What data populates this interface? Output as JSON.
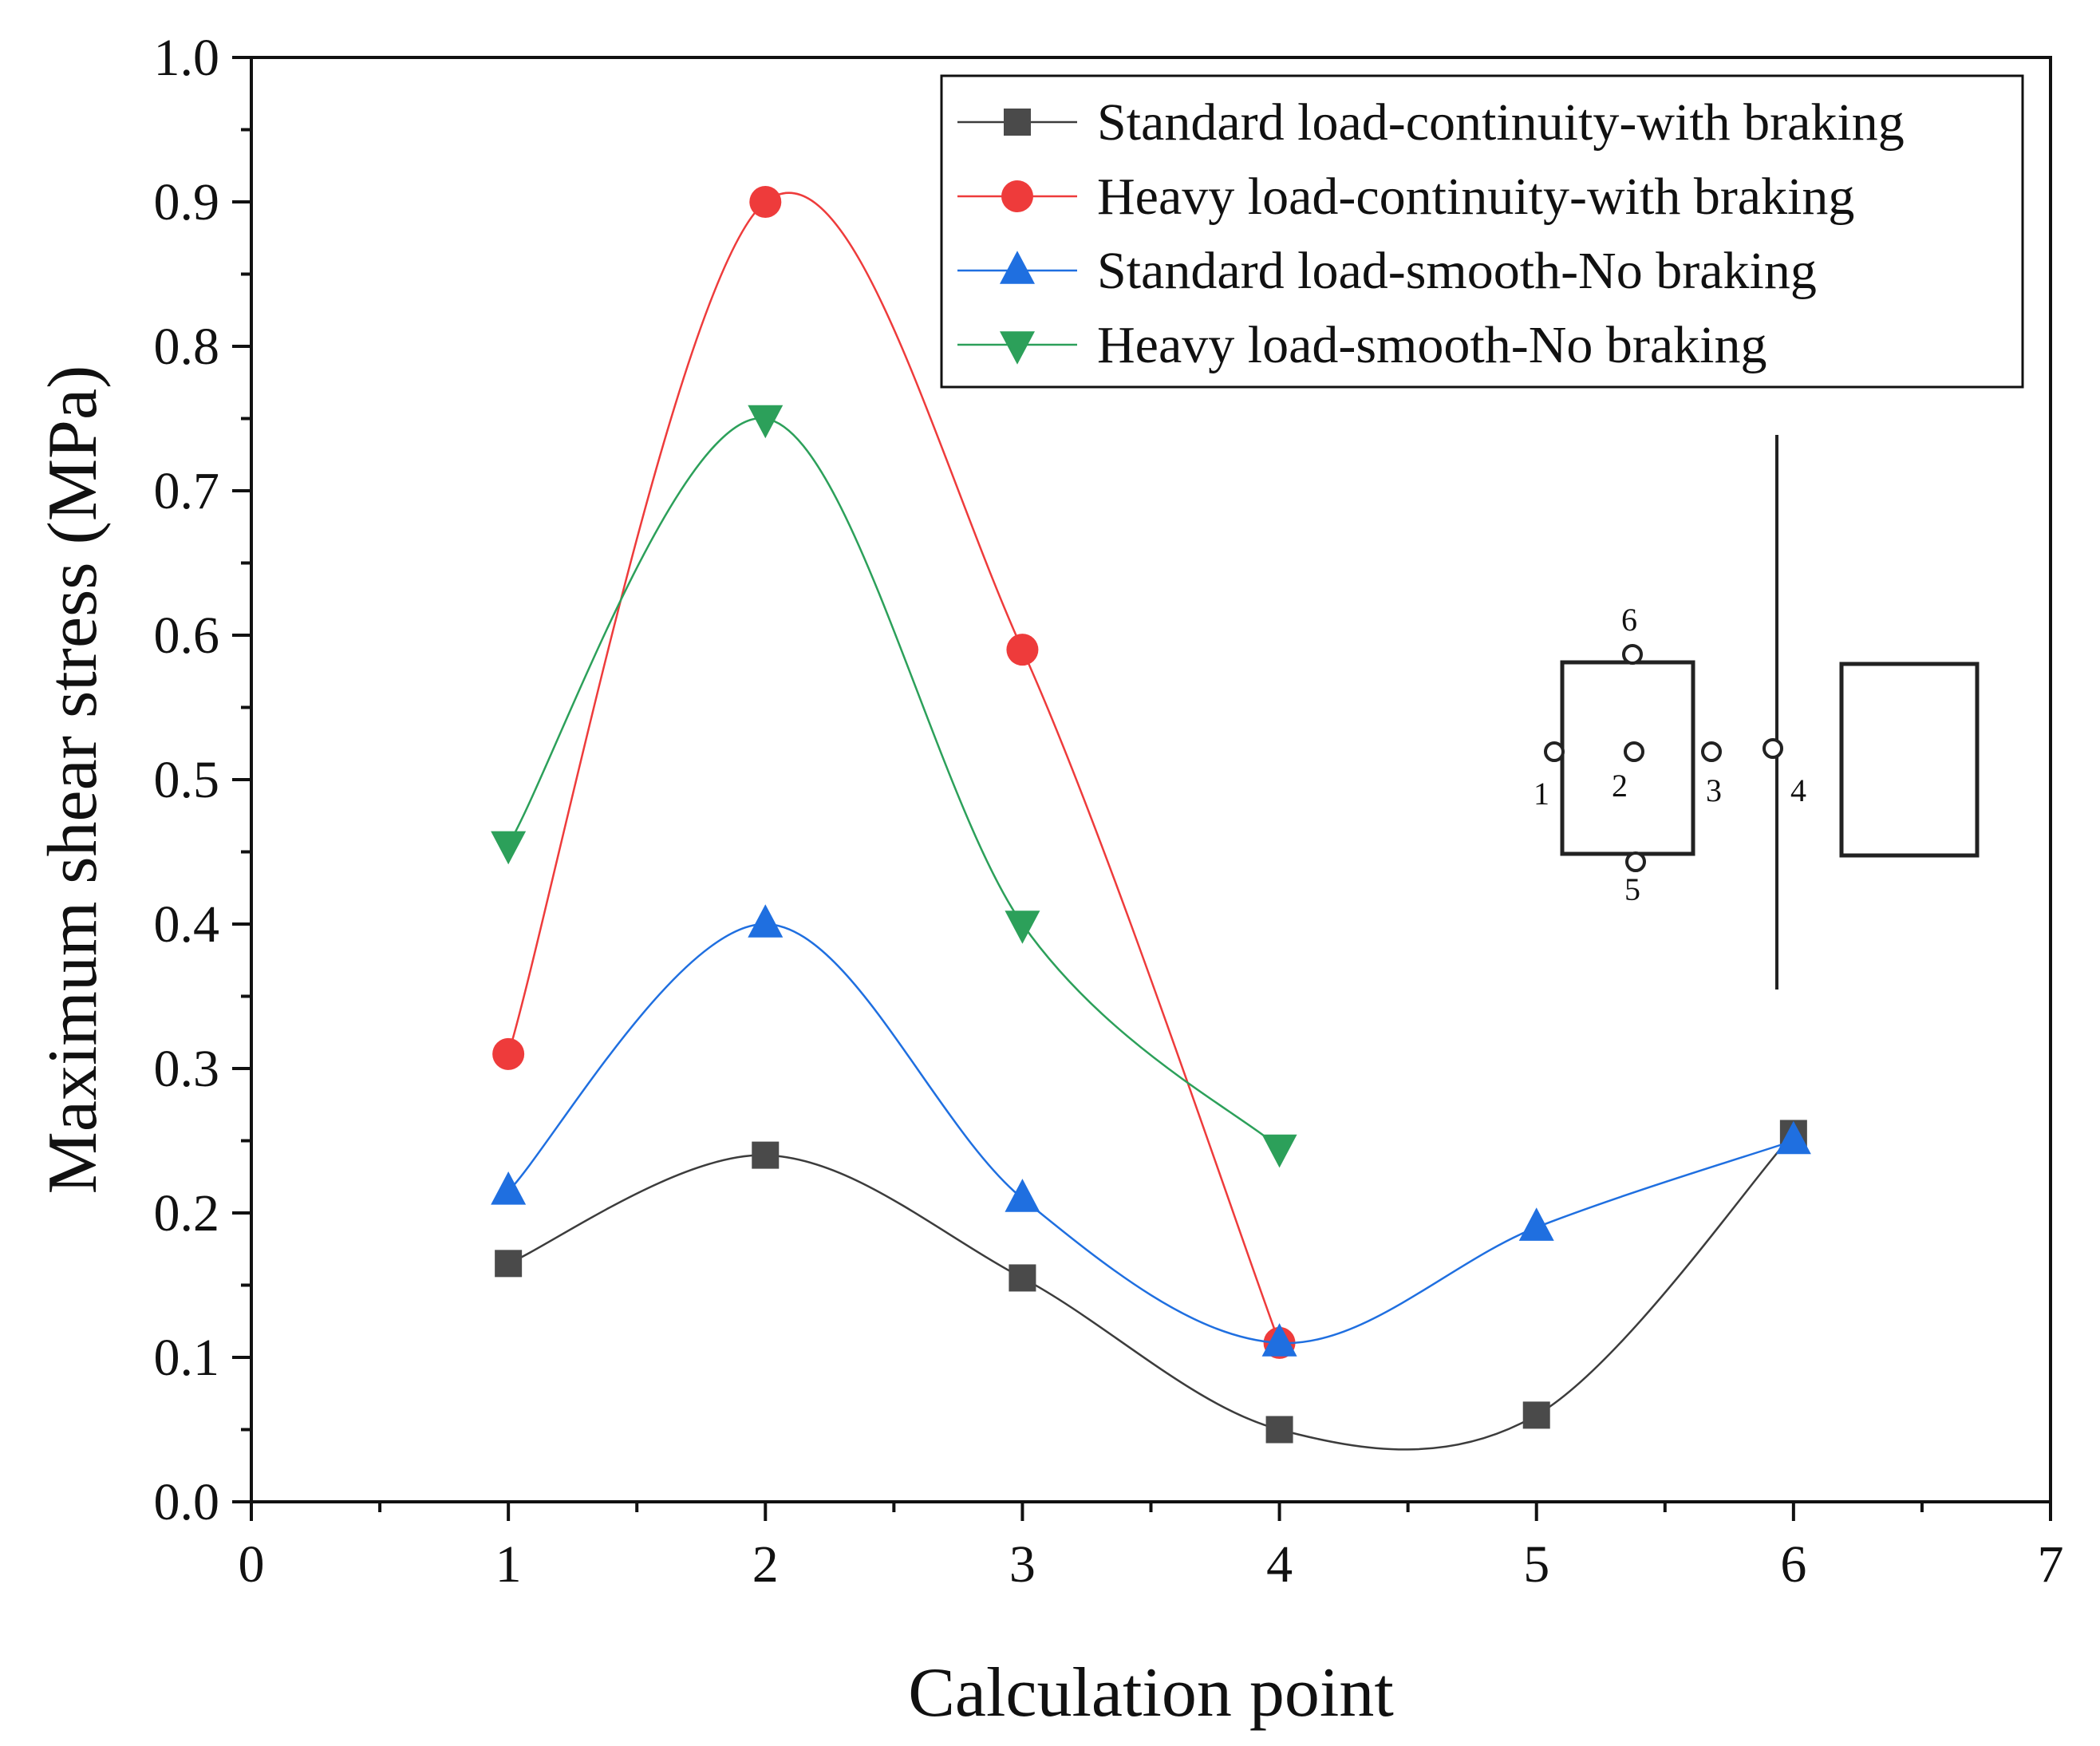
{
  "chart_data": {
    "type": "line",
    "title": "",
    "xlabel": "Calculation point",
    "ylabel": "Maximum shear stress (MPa)",
    "xlim": [
      0,
      7
    ],
    "ylim": [
      0.0,
      1.0
    ],
    "x_ticks": [
      "0",
      "1",
      "2",
      "3",
      "4",
      "5",
      "6",
      "7"
    ],
    "y_ticks": [
      "0.0",
      "0.1",
      "0.2",
      "0.3",
      "0.4",
      "0.5",
      "0.6",
      "0.7",
      "0.8",
      "0.9",
      "1.0"
    ],
    "grid": false,
    "legend_position": "top-right",
    "series": [
      {
        "name": "Standard load-continuity-with braking",
        "marker": "square",
        "color": "#4a4a4a",
        "line_color": "#3c3c3c",
        "x": [
          1,
          2,
          3,
          4,
          5,
          6
        ],
        "values": [
          0.165,
          0.24,
          0.155,
          0.05,
          0.06,
          0.255
        ]
      },
      {
        "name": "Heavy load-continuity-with braking",
        "marker": "circle",
        "color": "#ee3b3b",
        "line_color": "#ee3b3b",
        "x": [
          1,
          2,
          3,
          4
        ],
        "values": [
          0.31,
          0.9,
          0.59,
          0.11
        ]
      },
      {
        "name": "Standard load-smooth-No braking",
        "marker": "triangle-up",
        "color": "#1f6fe0",
        "line_color": "#1f6fe0",
        "x": [
          1,
          2,
          3,
          4,
          5,
          6
        ],
        "values": [
          0.215,
          0.4,
          0.21,
          0.11,
          0.19,
          0.25
        ]
      },
      {
        "name": "Heavy load-smooth-No braking",
        "marker": "triangle-down",
        "color": "#2ca05a",
        "line_color": "#2ca05a",
        "x": [
          1,
          2,
          3,
          4
        ],
        "values": [
          0.455,
          0.75,
          0.4,
          0.245
        ]
      }
    ],
    "inset": {
      "description_labels": [
        "1",
        "2",
        "3",
        "4",
        "5",
        "6"
      ]
    }
  }
}
